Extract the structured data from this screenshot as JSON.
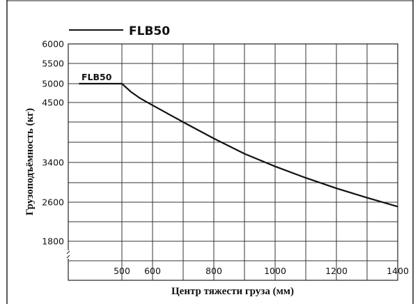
{
  "chart_data": {
    "type": "line",
    "legend": {
      "label": "FLB50",
      "placement": "top-left"
    },
    "series": [
      {
        "name": "FLB50",
        "x": [
          400,
          500,
          530,
          560,
          600,
          700,
          800,
          900,
          1000,
          1100,
          1200,
          1300,
          1400
        ],
        "y": [
          5000,
          5000,
          4780,
          4610,
          4450,
          4140,
          3840,
          3560,
          3320,
          3090,
          2880,
          2690,
          2510
        ]
      }
    ],
    "series_label": {
      "text": "FLB50"
    },
    "xlabel": "Центр тяжести груза (мм)",
    "ylabel": "Грузоподъёмность (кг)",
    "x_ticks": [
      500,
      600,
      800,
      1000,
      1200,
      1400
    ],
    "y_ticks": [
      1800,
      2600,
      3400,
      4500,
      5000,
      5500,
      6000
    ],
    "xlim": [
      375,
      1400
    ],
    "ylim": [
      1500,
      6000
    ],
    "y_axis_break": true,
    "grid": true
  }
}
